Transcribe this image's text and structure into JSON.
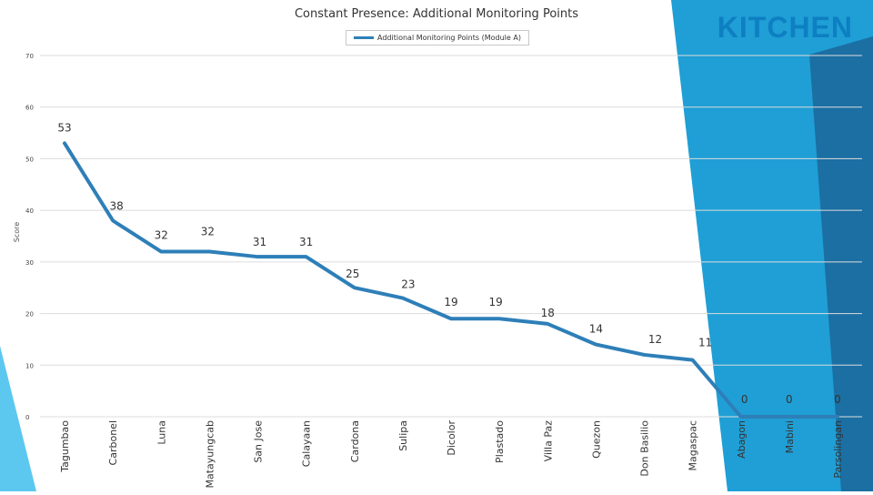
{
  "slide": {
    "badge": "KITCHEN",
    "accent_color": "#1f9fd5",
    "accent_dark": "#1b6fa3",
    "accent_light": "#5cc8ef",
    "badge_color": "#0d7fc2"
  },
  "chart_data": {
    "type": "line",
    "title": "Constant Presence: Additional Monitoring Points",
    "ylabel": "Score",
    "xlabel": "",
    "ylim": [
      0,
      70
    ],
    "yticks": [
      "0",
      "10",
      "20",
      "30",
      "40",
      "50",
      "60",
      "70"
    ],
    "legend": "top",
    "grid": true,
    "categories": [
      "Tagumbao",
      "Carbonel",
      "Luna",
      "Matayungcab",
      "San Jose",
      "Calayaan",
      "Cardona",
      "Sulipa",
      "Dicolor",
      "Plastado",
      "Villa Paz",
      "Quezon",
      "Don Basilio",
      "Magaspac",
      "Abagon",
      "Mabini",
      "Parsolingan"
    ],
    "series": [
      {
        "name": "Additional Monitoring Points (Module A)",
        "color": "#2e7fb8",
        "values": [
          53,
          38,
          32,
          32,
          31,
          31,
          25,
          23,
          19,
          19,
          18,
          14,
          12,
          11,
          0,
          0,
          0
        ],
        "labels": [
          "53",
          "38",
          "32",
          "32",
          "31",
          "31",
          "25",
          "23",
          "19",
          "19",
          "18",
          "14",
          "12",
          "11",
          "0",
          "0",
          "0"
        ]
      }
    ]
  }
}
